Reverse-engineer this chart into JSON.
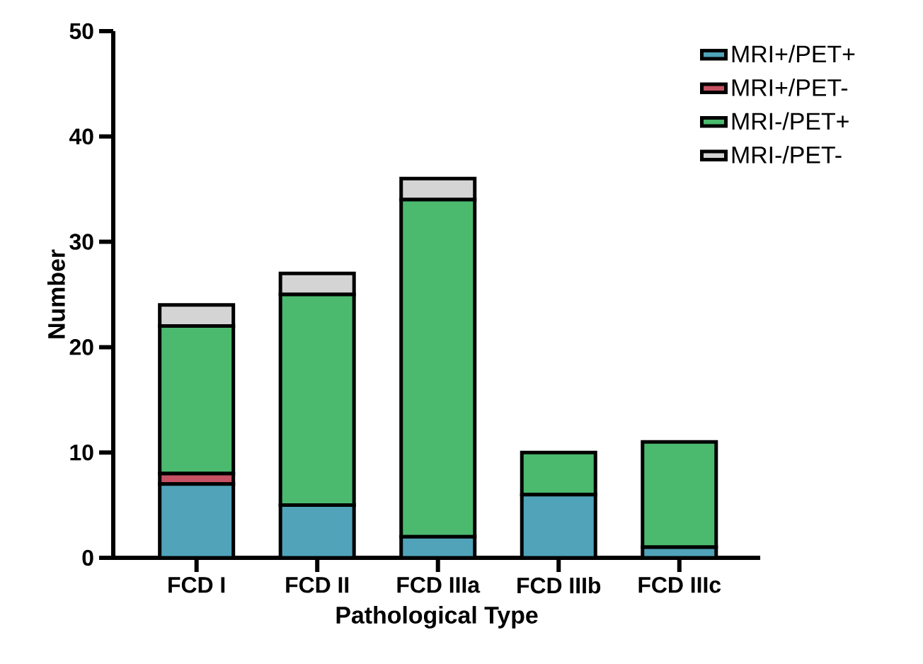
{
  "chart_data": {
    "type": "bar",
    "stacked": true,
    "xlabel": "Pathological Type",
    "ylabel": "Number",
    "categories": [
      "FCD I",
      "FCD II",
      "FCD IIIa",
      "FCD IIIb",
      "FCD IIIc"
    ],
    "series": [
      {
        "name": "MRI+/PET+",
        "color": "#50a3b9",
        "values": [
          7,
          5,
          2,
          6,
          1
        ]
      },
      {
        "name": "MRI+/PET-",
        "color": "#c65163",
        "values": [
          1,
          0,
          0,
          0,
          0
        ]
      },
      {
        "name": "MRI-/PET+",
        "color": "#4bba6e",
        "values": [
          14,
          20,
          32,
          4,
          10
        ]
      },
      {
        "name": "MRI-/PET-",
        "color": "#d4d4d4",
        "values": [
          2,
          2,
          2,
          0,
          0
        ]
      }
    ],
    "ylim": [
      0,
      50
    ],
    "yticks": [
      0,
      10,
      20,
      30,
      40,
      50
    ],
    "grid": false,
    "legend": "top right"
  }
}
